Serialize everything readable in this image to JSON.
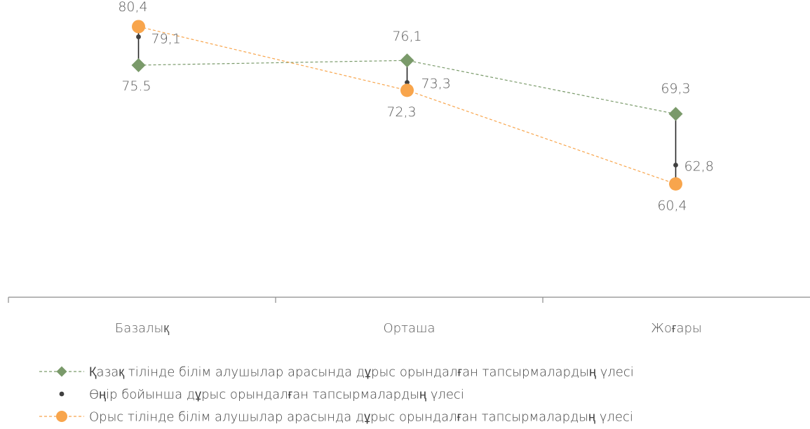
{
  "chart_data": {
    "type": "line",
    "categories": [
      "Базалық",
      "Орташа",
      "Жоғары"
    ],
    "series": [
      {
        "name": "Қазақ тілінде білім алушылар арасында дұрыс орындалған тапсырмалардың үлесі",
        "values": [
          75.5,
          76.1,
          69.3
        ],
        "labels": [
          "75.5",
          "76,1",
          "69,3"
        ],
        "color": "#7a9a6a",
        "marker": "diamond",
        "line": "dashed"
      },
      {
        "name": "Өңір бойынша дұрыс орындалған тапсырмалардың үлесі",
        "values": [
          79.1,
          73.3,
          62.8
        ],
        "labels": [
          "79,1",
          "73,3",
          "62,8"
        ],
        "color": "#404040",
        "marker": "dot",
        "line": "none"
      },
      {
        "name": "Орыс тілінде білім алушылар арасында дұрыс орындалған тапсырмалардың үлесі",
        "values": [
          80.4,
          72.3,
          60.4
        ],
        "labels": [
          "80,4",
          "72,3",
          "60,4"
        ],
        "color": "#f8a54c",
        "marker": "circle",
        "line": "dashed"
      }
    ],
    "high_low_lines": true,
    "ylim": [
      46,
      82
    ],
    "legend": "bottom"
  }
}
